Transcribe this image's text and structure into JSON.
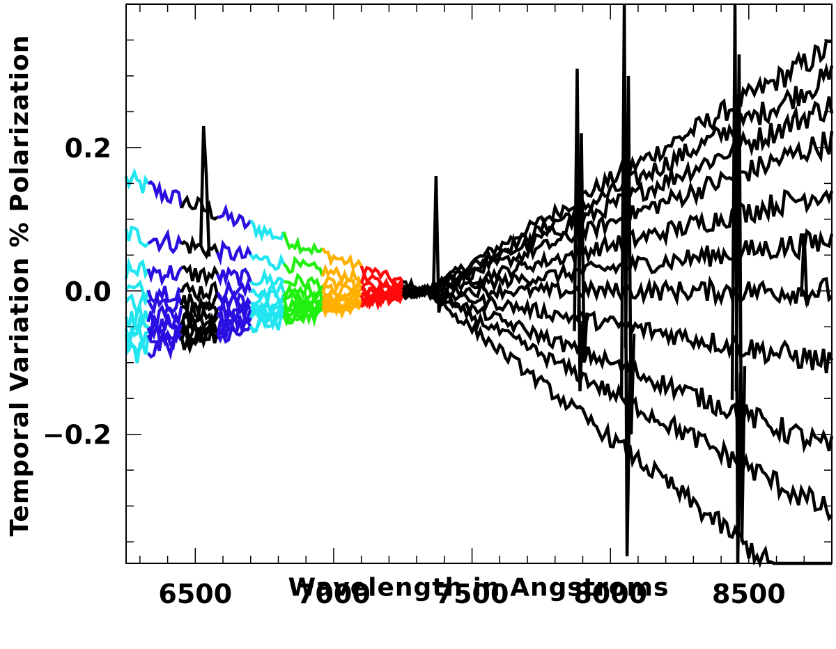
{
  "chart_data": {
    "type": "line",
    "title": "",
    "xlabel": "Wavelength in Angstroms",
    "ylabel": "Temporal Variation % Polarization",
    "xlim": [
      6250,
      8800
    ],
    "ylim": [
      -0.38,
      0.4
    ],
    "xticks": [
      6500,
      7000,
      7500,
      8000,
      8500
    ],
    "xtick_labels": [
      "6500",
      "7000",
      "7500",
      "8000",
      "8500"
    ],
    "yticks": [
      -0.2,
      0.0,
      0.2
    ],
    "ytick_labels": [
      "−0.2",
      "0.0",
      "0.2"
    ],
    "grid": false,
    "legend": "none",
    "colors": {
      "cyan": "#22e5f0",
      "blue": "#2a10e0",
      "black": "#000000",
      "green": "#22f010",
      "orange": "#ffb000",
      "red": "#ff0a0a"
    },
    "segments": [
      {
        "color": "cyan",
        "x_start": 6250,
        "x_end": 6330
      },
      {
        "color": "blue",
        "x_start": 6310,
        "x_end": 6450
      },
      {
        "color": "black",
        "x_start": 6430,
        "x_end": 6580
      },
      {
        "color": "blue",
        "x_start": 6560,
        "x_end": 6700
      },
      {
        "color": "cyan",
        "x_start": 6680,
        "x_end": 6820
      },
      {
        "color": "green",
        "x_start": 6800,
        "x_end": 6960
      },
      {
        "color": "orange",
        "x_start": 6940,
        "x_end": 7100
      },
      {
        "color": "red",
        "x_start": 7080,
        "x_end": 7250
      },
      {
        "color": "black",
        "x_start": 7230,
        "x_end": 8800
      }
    ],
    "node": {
      "x": 7330,
      "y": 0.0
    },
    "series": [
      {
        "left": 0.155,
        "right": 0.34
      },
      {
        "left": 0.08,
        "right": 0.3
      },
      {
        "left": 0.03,
        "right": 0.26
      },
      {
        "left": 0.0,
        "right": 0.21
      },
      {
        "left": -0.02,
        "right": 0.14
      },
      {
        "left": -0.04,
        "right": 0.07
      },
      {
        "left": -0.05,
        "right": 0.0
      },
      {
        "left": -0.06,
        "right": -0.1
      },
      {
        "left": -0.07,
        "right": -0.22
      },
      {
        "left": -0.08,
        "right": -0.31
      },
      {
        "left": -0.09,
        "right": -0.45
      }
    ],
    "spikes": [
      {
        "x": 7370,
        "y_top": 0.16,
        "y_bottom": -0.03
      },
      {
        "x": 7880,
        "y_top": 0.31,
        "y_bottom": -0.14
      },
      {
        "x": 7895,
        "y_top": 0.22,
        "y_bottom": -0.1
      },
      {
        "x": 8050,
        "y_top": 0.42,
        "y_bottom": -0.37
      },
      {
        "x": 8065,
        "y_top": 0.3,
        "y_bottom": -0.2
      },
      {
        "x": 8450,
        "y_top": 0.42,
        "y_bottom": -0.38
      },
      {
        "x": 8465,
        "y_top": 0.33,
        "y_bottom": -0.35
      },
      {
        "x": 6530,
        "y_top": 0.23,
        "y_bottom": 0.16
      },
      {
        "x": 8700,
        "y_top": 0.08,
        "y_bottom": -0.02
      }
    ]
  }
}
